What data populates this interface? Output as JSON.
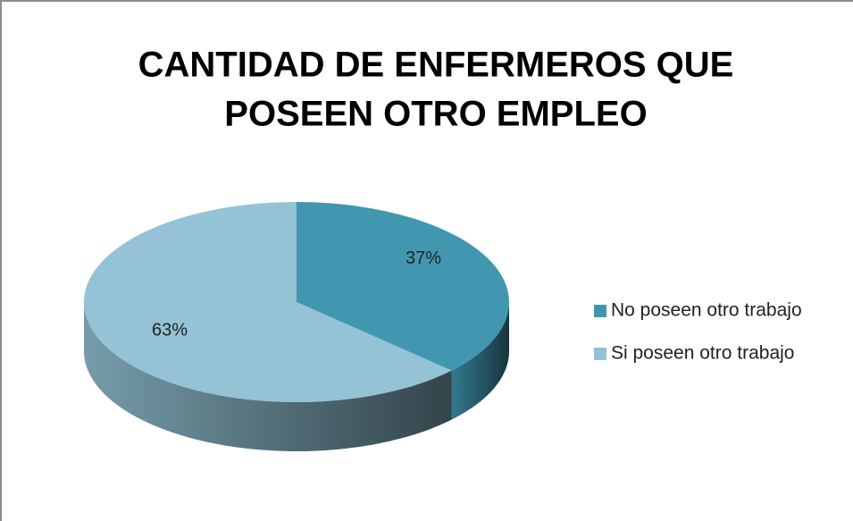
{
  "chart_data": {
    "type": "pie",
    "title": [
      "CANTIDAD DE ENFERMEROS QUE",
      "POSEEN OTRO EMPLEO"
    ],
    "categories": [
      "No poseen otro trabajo",
      "Si poseen otro trabajo"
    ],
    "values": [
      37,
      63
    ],
    "value_labels": [
      "37%",
      "63%"
    ],
    "colors": [
      "#4197b0",
      "#93c3d5"
    ],
    "legend": "right"
  }
}
